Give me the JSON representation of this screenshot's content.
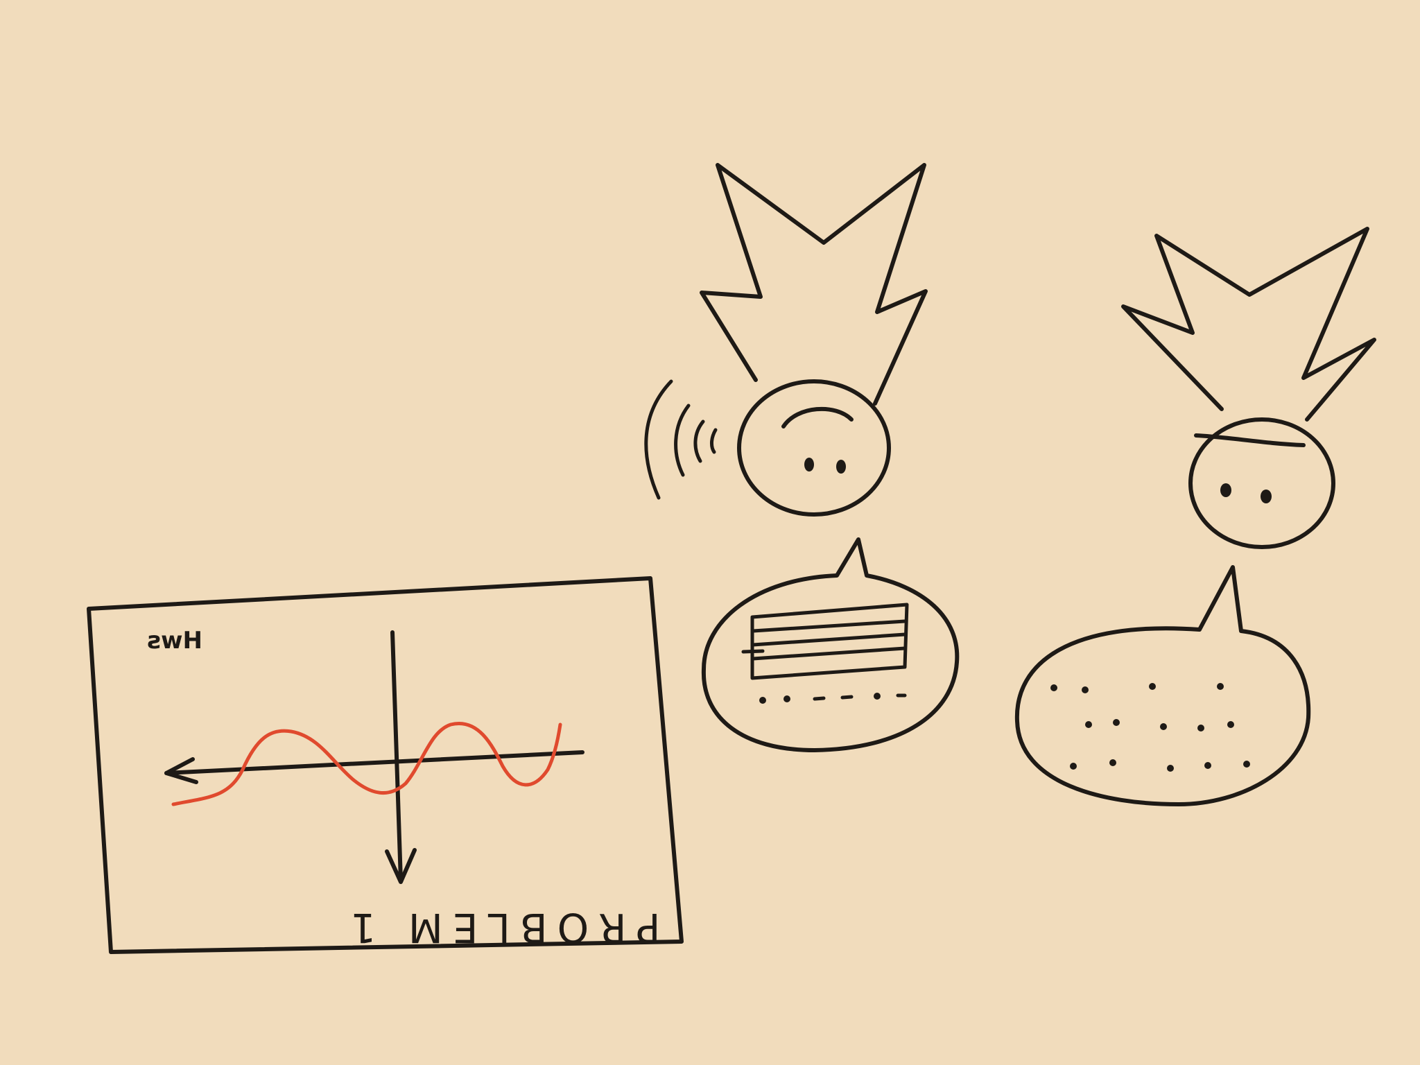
{
  "paper_color": "#f1dcbc",
  "ink_color": "#1e1a16",
  "wave_color": "#e04a2e",
  "sketch_card": {
    "corner_label": "Hws",
    "caption": "PROBLEM 1"
  },
  "figures": [
    {
      "name": "speaker",
      "hair_icon": "spiky-hair-icon",
      "face": "frown",
      "sound_icon": "sound-waves-icon",
      "bubble_icon": "speech-bubble-with-text-lines-icon"
    },
    {
      "name": "listener",
      "hair_icon": "spiky-hair-icon",
      "face": "flat-brow",
      "bubble_icon": "speech-bubble-with-dots-icon"
    }
  ]
}
